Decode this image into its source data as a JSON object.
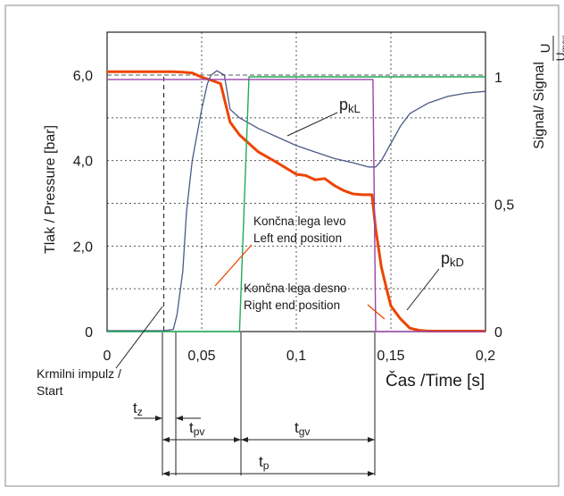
{
  "chart_data": {
    "type": "line",
    "x_ticks": [
      "0",
      "0,05",
      "0,1",
      "0,15",
      "0,2"
    ],
    "xlabel": "Čas /Time [s]",
    "y_ticks": [
      "0",
      "2,0",
      "4,0",
      "6,0"
    ],
    "ylabel": "Tlak / Pressure [bar]",
    "y2_ticks": [
      "0",
      "0,5",
      "1"
    ],
    "y2label": "Signal/ Signal",
    "y2frac_num": "U",
    "y2frac_den": "U",
    "y2frac_den_sub": "max",
    "xlim": [
      0,
      0.2
    ],
    "ylim": [
      0,
      6.0
    ],
    "y2lim": [
      0,
      1
    ],
    "grid": true,
    "series": [
      {
        "name": "pkD",
        "axis": "pressure",
        "color": "#ee4400",
        "x": [
          0,
          0.03,
          0.035,
          0.04,
          0.045,
          0.05,
          0.055,
          0.06,
          0.065,
          0.07,
          0.08,
          0.09,
          0.1,
          0.105,
          0.11,
          0.115,
          0.12,
          0.125,
          0.13,
          0.135,
          0.14,
          0.142,
          0.145,
          0.148,
          0.15,
          0.155,
          0.16,
          0.165,
          0.17,
          0.2
        ],
        "y": [
          6.08,
          6.08,
          6.08,
          6.07,
          6.05,
          5.95,
          5.88,
          5.8,
          4.9,
          4.6,
          4.2,
          3.95,
          3.68,
          3.65,
          3.55,
          3.58,
          3.42,
          3.3,
          3.22,
          3.2,
          3.2,
          2.4,
          1.5,
          0.95,
          0.6,
          0.3,
          0.08,
          0.03,
          0.01,
          0.01
        ]
      },
      {
        "name": "pkL",
        "axis": "pressure",
        "color": "#4a5a86",
        "x": [
          0,
          0.03,
          0.035,
          0.037,
          0.04,
          0.042,
          0.045,
          0.05,
          0.053,
          0.055,
          0.058,
          0.06,
          0.062,
          0.065,
          0.07,
          0.08,
          0.09,
          0.1,
          0.11,
          0.12,
          0.13,
          0.138,
          0.142,
          0.145,
          0.15,
          0.155,
          0.16,
          0.17,
          0.18,
          0.19,
          0.2
        ],
        "y": [
          0.02,
          0.02,
          0.05,
          0.4,
          1.4,
          2.8,
          4.0,
          5.2,
          5.8,
          6.0,
          6.1,
          6.05,
          6.0,
          5.2,
          5.0,
          4.75,
          4.55,
          4.35,
          4.2,
          4.05,
          3.95,
          3.85,
          3.85,
          4.0,
          4.4,
          4.8,
          5.1,
          5.35,
          5.5,
          5.58,
          5.62
        ]
      },
      {
        "name": "Končna lega levo / Left end position",
        "axis": "signal",
        "color": "#22aa55",
        "x": [
          0,
          0.07,
          0.075,
          0.148,
          0.149,
          0.2
        ],
        "y": [
          0,
          0,
          1.0,
          1.0,
          1.0,
          1.0
        ]
      },
      {
        "name": "Končna lega desno / Right end position",
        "axis": "signal",
        "color": "#9944aa",
        "x": [
          0,
          0.002,
          0.14,
          0.1405,
          0.142,
          0.2
        ],
        "y": [
          0.99,
          0.99,
          0.99,
          0.99,
          0,
          0
        ]
      }
    ],
    "annotations": {
      "pkl_label": "p",
      "pkl_sub": "kL",
      "pkd_label": "p",
      "pkd_sub": "kD",
      "left_end_1": "Končna lega levo",
      "left_end_2": "Left end position",
      "right_end_1": "Končna lega desno",
      "right_end_2": "Right end position",
      "start_1": "Krmilni impulz /",
      "start_2": "Start",
      "tz": "t",
      "tz_sub": "z",
      "tpv": "t",
      "tpv_sub": "pv",
      "tgv": "t",
      "tgv_sub": "gv",
      "tp": "t",
      "tp_sub": "p"
    },
    "colors": {
      "pkD": "#ee4400",
      "pkL": "#4a5a86",
      "left_end": "#22aa55",
      "right_end": "#9944aa"
    }
  }
}
